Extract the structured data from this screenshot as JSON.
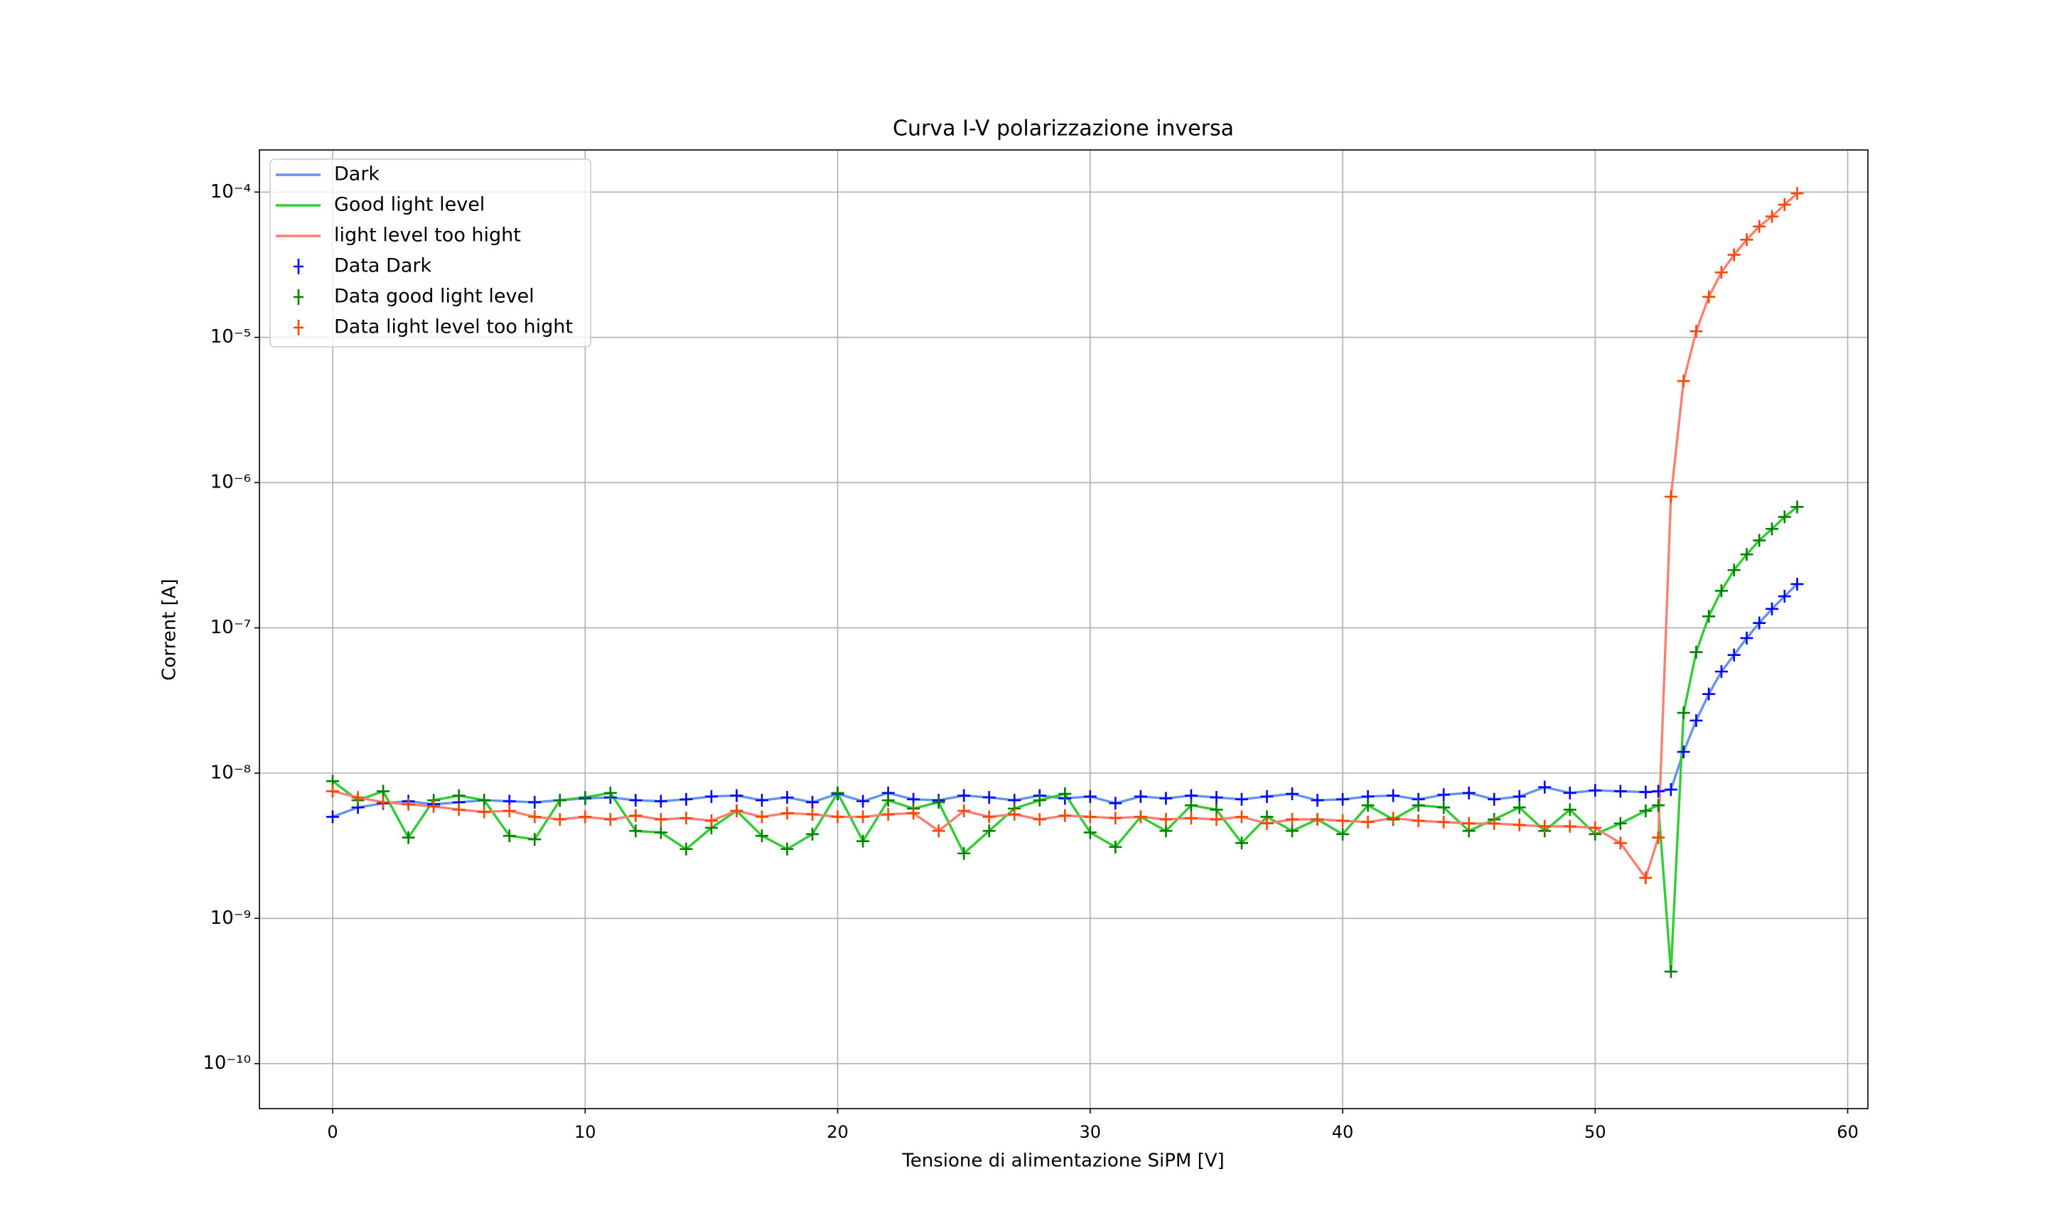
{
  "chart_data": {
    "type": "line",
    "title": "Curva I-V polarizzazione inversa",
    "x_label": "Tensione di alimentazione SiPM [V]",
    "y_label": "Corrent [A]",
    "log_y": true,
    "grid": true,
    "legend": "upper left",
    "xlim": [
      -2.9,
      60.8
    ],
    "ylim": [
      4.9e-11,
      0.000195
    ],
    "xticks": [
      0,
      10,
      20,
      30,
      40,
      50,
      60
    ],
    "yticks": [
      {
        "value": 1e-10,
        "label": "10⁻¹⁰"
      },
      {
        "value": 1e-09,
        "label": "10⁻⁹"
      },
      {
        "value": 1e-08,
        "label": "10⁻⁸"
      },
      {
        "value": 1e-07,
        "label": "10⁻⁷"
      },
      {
        "value": 1e-06,
        "label": "10⁻⁶"
      },
      {
        "value": 1e-05,
        "label": "10⁻⁵"
      },
      {
        "value": 0.0001,
        "label": "10⁻⁴"
      }
    ],
    "x": [
      0,
      1,
      2,
      3,
      4,
      5,
      6,
      7,
      8,
      9,
      10,
      11,
      12,
      13,
      14,
      15,
      16,
      17,
      18,
      19,
      20,
      21,
      22,
      23,
      24,
      25,
      26,
      27,
      28,
      29,
      30,
      31,
      32,
      33,
      34,
      35,
      36,
      37,
      38,
      39,
      40,
      41,
      42,
      43,
      44,
      45,
      46,
      47,
      48,
      49,
      50,
      51,
      52,
      52.5,
      53,
      53.5,
      54,
      54.5,
      55,
      55.5,
      56,
      56.5,
      57,
      57.5,
      58
    ],
    "series": [
      {
        "name": "Dark",
        "data_name": "Data Dark",
        "line_color": "#6495ed",
        "marker_color": "#0000ff",
        "values": [
          5e-09,
          5.8e-09,
          6.2e-09,
          6.4e-09,
          6.1e-09,
          6.3e-09,
          6.5e-09,
          6.4e-09,
          6.3e-09,
          6.5e-09,
          6.7e-09,
          6.8e-09,
          6.5e-09,
          6.4e-09,
          6.6e-09,
          6.9e-09,
          7e-09,
          6.5e-09,
          6.8e-09,
          6.3e-09,
          7.2e-09,
          6.4e-09,
          7.3e-09,
          6.6e-09,
          6.5e-09,
          7e-09,
          6.8e-09,
          6.5e-09,
          7e-09,
          6.7e-09,
          6.9e-09,
          6.2e-09,
          6.9e-09,
          6.7e-09,
          7e-09,
          6.8e-09,
          6.6e-09,
          6.9e-09,
          7.2e-09,
          6.5e-09,
          6.6e-09,
          6.9e-09,
          7e-09,
          6.6e-09,
          7.1e-09,
          7.3e-09,
          6.6e-09,
          6.9e-09,
          8e-09,
          7.3e-09,
          7.6e-09,
          7.5e-09,
          7.4e-09,
          7.5e-09,
          7.7e-09,
          1.4e-08,
          2.3e-08,
          3.5e-08,
          5e-08,
          6.5e-08,
          8.5e-08,
          1.08e-07,
          1.35e-07,
          1.65e-07,
          2e-07
        ]
      },
      {
        "name": "Good light level",
        "data_name": "Data good light level",
        "line_color": "#32cd32",
        "marker_color": "#008000",
        "values": [
          8.8e-09,
          6.5e-09,
          7.5e-09,
          3.6e-09,
          6.5e-09,
          7e-09,
          6.5e-09,
          3.7e-09,
          3.5e-09,
          6.5e-09,
          6.8e-09,
          7.3e-09,
          4e-09,
          3.9e-09,
          3e-09,
          4.2e-09,
          5.5e-09,
          3.7e-09,
          3e-09,
          3.8e-09,
          7.3e-09,
          3.4e-09,
          6.5e-09,
          5.7e-09,
          6.3e-09,
          2.8e-09,
          4e-09,
          5.7e-09,
          6.5e-09,
          7.2e-09,
          3.9e-09,
          3.1e-09,
          5e-09,
          4e-09,
          6e-09,
          5.6e-09,
          3.3e-09,
          5e-09,
          4e-09,
          4.8e-09,
          3.8e-09,
          6e-09,
          4.8e-09,
          6e-09,
          5.8e-09,
          4e-09,
          4.8e-09,
          5.8e-09,
          4e-09,
          5.6e-09,
          3.8e-09,
          4.5e-09,
          5.5e-09,
          6e-09,
          4.3e-10,
          2.6e-08,
          6.8e-08,
          1.2e-07,
          1.8e-07,
          2.5e-07,
          3.2e-07,
          4e-07,
          4.8e-07,
          5.8e-07,
          6.8e-07
        ]
      },
      {
        "name": "light level too hight",
        "data_name": "Data light level too hight",
        "line_color": "#fa8072",
        "marker_color": "#ff4500",
        "values": [
          7.5e-09,
          6.8e-09,
          6.3e-09,
          6.1e-09,
          5.9e-09,
          5.6e-09,
          5.4e-09,
          5.5e-09,
          5e-09,
          4.8e-09,
          5e-09,
          4.8e-09,
          5.1e-09,
          4.8e-09,
          4.9e-09,
          4.7e-09,
          5.5e-09,
          5e-09,
          5.3e-09,
          5.2e-09,
          5e-09,
          5e-09,
          5.2e-09,
          5.3e-09,
          4e-09,
          5.5e-09,
          5e-09,
          5.2e-09,
          4.8e-09,
          5.1e-09,
          5e-09,
          4.9e-09,
          5e-09,
          4.8e-09,
          4.9e-09,
          4.8e-09,
          5e-09,
          4.5e-09,
          4.8e-09,
          4.8e-09,
          4.7e-09,
          4.6e-09,
          4.9e-09,
          4.7e-09,
          4.6e-09,
          4.5e-09,
          4.5e-09,
          4.4e-09,
          4.3e-09,
          4.3e-09,
          4.2e-09,
          3.3e-09,
          1.9e-09,
          3.6e-09,
          8e-07,
          5e-06,
          1.1e-05,
          1.9e-05,
          2.8e-05,
          3.7e-05,
          4.7e-05,
          5.8e-05,
          6.8e-05,
          8.2e-05,
          9.8e-05
        ]
      }
    ]
  }
}
